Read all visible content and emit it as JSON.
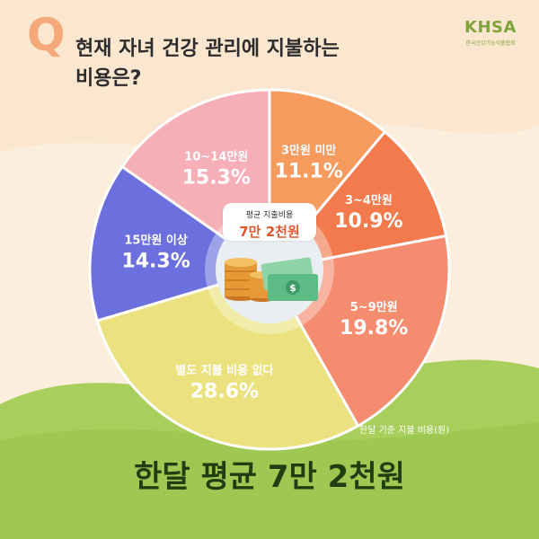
{
  "header": {
    "q_mark": "Q",
    "question": "현재 자녀 건강 관리에 지불하는 비용은?",
    "logo_text": "KHSA",
    "logo_subtitle": "한국건강기능식품협회"
  },
  "center": {
    "label": "평균 지출비용",
    "value": "7만 2천원"
  },
  "unit_note": "한달 기준 지불 비용(원)",
  "headline": {
    "prefix": "한달 평균",
    "value": "7만 2천원"
  },
  "colors": {
    "background": "#fbe7cf",
    "grass": "#a8cf5c",
    "headline": "#1f3f12",
    "accent": "#e4572e"
  },
  "chart_data": {
    "type": "pie",
    "title": "",
    "slices": [
      {
        "label": "3만원 미만",
        "value": 11.1,
        "display": "11.1%",
        "color": "#f79a5e"
      },
      {
        "label": "3~4만원",
        "value": 10.9,
        "display": "10.9%",
        "color": "#f27a4c"
      },
      {
        "label": "5~9만원",
        "value": 19.8,
        "display": "19.8%",
        "color": "#f58c6f"
      },
      {
        "label": "별도 지불 비용 없다",
        "value": 28.6,
        "display": "28.6%",
        "color": "#ebe27f"
      },
      {
        "label": "15만원 이상",
        "value": 14.3,
        "display": "14.3%",
        "color": "#6b70de"
      },
      {
        "label": "10~14만원",
        "value": 15.3,
        "display": "15.3%",
        "color": "#f6aeb7"
      }
    ]
  }
}
